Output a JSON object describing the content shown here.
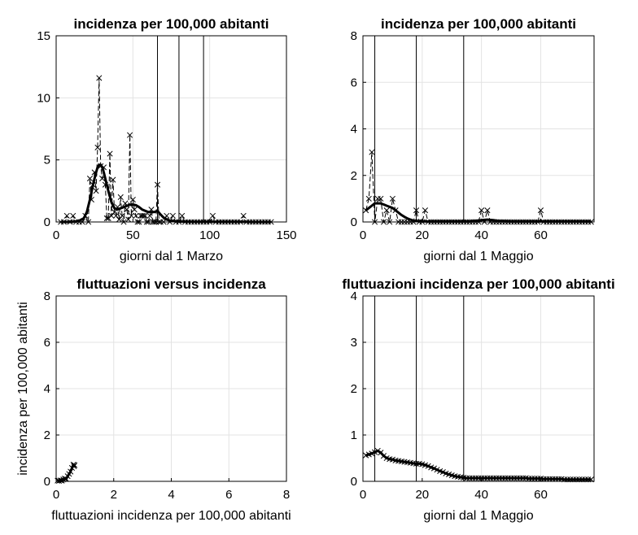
{
  "chart_data": [
    {
      "type": "line",
      "title": "incidenza per 100,000 abitanti",
      "xlabel": "giorni dal 1 Marzo",
      "ylabel": "",
      "xlim": [
        0,
        150
      ],
      "ylim": [
        0,
        15
      ],
      "xticks": [
        "0",
        "50",
        "100",
        "150"
      ],
      "yticks": [
        "0",
        "5",
        "10",
        "15"
      ],
      "grid": true,
      "vlines": [
        66,
        80,
        96
      ],
      "series": [
        {
          "style": "dashed-x",
          "x": [
            3,
            5,
            7,
            9,
            11,
            13,
            15,
            17,
            19,
            21,
            22,
            23,
            24,
            25,
            26,
            27,
            28,
            29,
            30,
            31,
            32,
            33,
            34,
            35,
            36,
            37,
            38,
            39,
            40,
            41,
            42,
            43,
            44,
            45,
            46,
            47,
            48,
            49,
            50,
            51,
            52,
            53,
            54,
            55,
            56,
            57,
            58,
            59,
            60,
            61,
            62,
            63,
            64,
            65,
            66,
            67,
            68,
            70,
            72,
            74,
            76,
            78,
            80,
            82,
            84,
            86,
            88,
            90,
            92,
            94,
            96,
            98,
            100,
            102,
            104,
            106,
            108,
            110,
            112,
            114,
            116,
            118,
            120,
            122,
            124,
            126,
            128,
            130,
            132,
            134,
            136,
            138,
            140
          ],
          "y": [
            0,
            0,
            0.5,
            0,
            0.5,
            0,
            0,
            0,
            0.5,
            0,
            3.5,
            1.8,
            3,
            4,
            2.5,
            6,
            11.6,
            4.5,
            3.5,
            4.4,
            3,
            0.3,
            0.3,
            5.5,
            0.5,
            3.4,
            0.8,
            0.5,
            1.2,
            0.2,
            2,
            0.5,
            0,
            1.5,
            1,
            0.2,
            7,
            0.5,
            1.8,
            1,
            0.5,
            0,
            0,
            0.5,
            0.5,
            0.5,
            0.5,
            0,
            0,
            0.5,
            1,
            0,
            0,
            0,
            3,
            0,
            0,
            0,
            0.5,
            0,
            0.5,
            0,
            0,
            0.5,
            0,
            0,
            0,
            0,
            0,
            0,
            0,
            0,
            0,
            0.5,
            0,
            0,
            0,
            0,
            0,
            0,
            0,
            0,
            0,
            0.5,
            0,
            0,
            0,
            0,
            0,
            0,
            0,
            0,
            0
          ]
        },
        {
          "style": "thick",
          "x": [
            3,
            10,
            15,
            18,
            20,
            22,
            24,
            26,
            27,
            28,
            29,
            30,
            31,
            32,
            34,
            36,
            38,
            40,
            42,
            44,
            46,
            48,
            50,
            52,
            54,
            56,
            58,
            60,
            62,
            64,
            66,
            68,
            70,
            72,
            75,
            80,
            90,
            100,
            110,
            120,
            130,
            140
          ],
          "y": [
            0,
            0,
            0.1,
            0.3,
            0.8,
            1.8,
            3,
            4,
            4.4,
            4.6,
            4.6,
            4.4,
            4,
            3.5,
            2.5,
            1.6,
            1.1,
            1,
            1.1,
            1.2,
            1.3,
            1.4,
            1.4,
            1.35,
            1.2,
            1,
            0.9,
            0.8,
            0.8,
            0.8,
            0.9,
            0.6,
            0.35,
            0.2,
            0.08,
            0.03,
            0.01,
            0.01,
            0.01,
            0.01,
            0,
            0
          ]
        }
      ]
    },
    {
      "type": "line",
      "title": "incidenza per 100,000 abitanti",
      "xlabel": "giorni dal 1 Maggio",
      "ylabel": "",
      "xlim": [
        0,
        78
      ],
      "ylim": [
        0,
        8
      ],
      "xticks": [
        "0",
        "20",
        "40",
        "60"
      ],
      "yticks": [
        "0",
        "2",
        "4",
        "6",
        "8"
      ],
      "grid": true,
      "vlines": [
        4,
        18,
        34
      ],
      "series": [
        {
          "style": "dashed-x",
          "x": [
            1,
            2,
            3,
            4,
            5,
            6,
            7,
            8,
            9,
            10,
            11,
            12,
            13,
            14,
            15,
            16,
            17,
            18,
            19,
            20,
            21,
            22,
            23,
            24,
            25,
            26,
            27,
            28,
            29,
            30,
            31,
            32,
            33,
            34,
            35,
            36,
            37,
            38,
            39,
            40,
            41,
            42,
            43,
            44,
            45,
            46,
            47,
            48,
            49,
            50,
            51,
            52,
            53,
            54,
            55,
            56,
            57,
            58,
            59,
            60,
            61,
            62,
            63,
            64,
            65,
            66,
            67,
            68,
            69,
            70,
            71,
            72,
            73,
            74,
            75,
            76,
            77
          ],
          "y": [
            0.5,
            1,
            3,
            0,
            1,
            1,
            0,
            0.5,
            0,
            1,
            0.5,
            0,
            0,
            0,
            0,
            0,
            0,
            0.5,
            0,
            0,
            0.5,
            0,
            0,
            0,
            0,
            0,
            0,
            0,
            0,
            0,
            0,
            0,
            0,
            0,
            0,
            0,
            0,
            0,
            0,
            0.5,
            0,
            0.5,
            0,
            0,
            0,
            0,
            0,
            0,
            0,
            0,
            0,
            0,
            0,
            0,
            0,
            0,
            0,
            0,
            0,
            0.5,
            0,
            0,
            0,
            0,
            0,
            0,
            0,
            0,
            0,
            0,
            0,
            0,
            0,
            0,
            0,
            0,
            0
          ]
        },
        {
          "style": "thick",
          "x": [
            1,
            2,
            3,
            4,
            5,
            6,
            7,
            8,
            9,
            10,
            11,
            12,
            13,
            14,
            15,
            16,
            17,
            18,
            19,
            20,
            22,
            24,
            26,
            28,
            30,
            32,
            34,
            36,
            38,
            40,
            42,
            44,
            46,
            50,
            60,
            70,
            77
          ],
          "y": [
            0.5,
            0.6,
            0.7,
            0.8,
            0.8,
            0.8,
            0.75,
            0.7,
            0.65,
            0.6,
            0.5,
            0.4,
            0.3,
            0.22,
            0.15,
            0.1,
            0.06,
            0.04,
            0.03,
            0.02,
            0.02,
            0.02,
            0.02,
            0.02,
            0.02,
            0.02,
            0.02,
            0.02,
            0.05,
            0.08,
            0.1,
            0.08,
            0.04,
            0.02,
            0.02,
            0.02,
            0.02
          ]
        }
      ]
    },
    {
      "type": "line",
      "title": "fluttuazioni versus incidenza",
      "xlabel": "fluttuazioni incidenza per 100,000 abitanti",
      "ylabel": "incidenza per 100,000 abitanti",
      "xlim": [
        0,
        8
      ],
      "ylim": [
        0,
        8
      ],
      "xticks": [
        "0",
        "2",
        "4",
        "6",
        "8"
      ],
      "yticks": [
        "0",
        "2",
        "4",
        "6",
        "8"
      ],
      "grid": true,
      "vlines": [],
      "series": [
        {
          "style": "thick-x",
          "x": [
            0.05,
            0.1,
            0.15,
            0.2,
            0.25,
            0.3,
            0.35,
            0.4,
            0.45,
            0.5,
            0.55,
            0.6,
            0.62,
            0.64
          ],
          "y": [
            0.03,
            0.02,
            0.04,
            0.03,
            0.08,
            0.12,
            0.1,
            0.22,
            0.32,
            0.42,
            0.58,
            0.72,
            0.65,
            0.7
          ]
        }
      ]
    },
    {
      "type": "line",
      "title": "fluttuazioni incidenza per 100,000 abitanti",
      "xlabel": "giorni dal 1 Maggio",
      "ylabel": "",
      "xlim": [
        0,
        78
      ],
      "ylim": [
        0,
        4
      ],
      "xticks": [
        "0",
        "20",
        "40",
        "60"
      ],
      "yticks": [
        "0",
        "1",
        "2",
        "3",
        "4"
      ],
      "grid": true,
      "vlines": [
        4,
        18,
        34
      ],
      "series": [
        {
          "style": "thick-x",
          "x": [
            1,
            2,
            3,
            4,
            5,
            6,
            7,
            8,
            9,
            10,
            11,
            12,
            13,
            14,
            15,
            16,
            17,
            18,
            19,
            20,
            21,
            22,
            23,
            24,
            25,
            26,
            27,
            28,
            29,
            30,
            31,
            32,
            33,
            34,
            35,
            36,
            37,
            38,
            39,
            40,
            41,
            42,
            43,
            44,
            45,
            46,
            47,
            48,
            49,
            50,
            51,
            52,
            53,
            54,
            55,
            56,
            57,
            58,
            59,
            60,
            61,
            62,
            63,
            64,
            65,
            66,
            67,
            68,
            69,
            70,
            71,
            72,
            73,
            74,
            75,
            76,
            77
          ],
          "y": [
            0.56,
            0.58,
            0.6,
            0.63,
            0.66,
            0.62,
            0.55,
            0.5,
            0.48,
            0.47,
            0.45,
            0.44,
            0.43,
            0.42,
            0.41,
            0.4,
            0.39,
            0.38,
            0.38,
            0.37,
            0.35,
            0.33,
            0.3,
            0.28,
            0.25,
            0.22,
            0.2,
            0.17,
            0.15,
            0.13,
            0.11,
            0.1,
            0.09,
            0.08,
            0.07,
            0.07,
            0.07,
            0.07,
            0.07,
            0.07,
            0.07,
            0.07,
            0.07,
            0.07,
            0.07,
            0.07,
            0.07,
            0.07,
            0.07,
            0.07,
            0.07,
            0.07,
            0.07,
            0.07,
            0.07,
            0.06,
            0.06,
            0.06,
            0.06,
            0.06,
            0.05,
            0.05,
            0.05,
            0.05,
            0.05,
            0.05,
            0.05,
            0.04,
            0.04,
            0.04,
            0.04,
            0.04,
            0.04,
            0.04,
            0.04,
            0.04,
            0.04
          ]
        }
      ]
    }
  ]
}
